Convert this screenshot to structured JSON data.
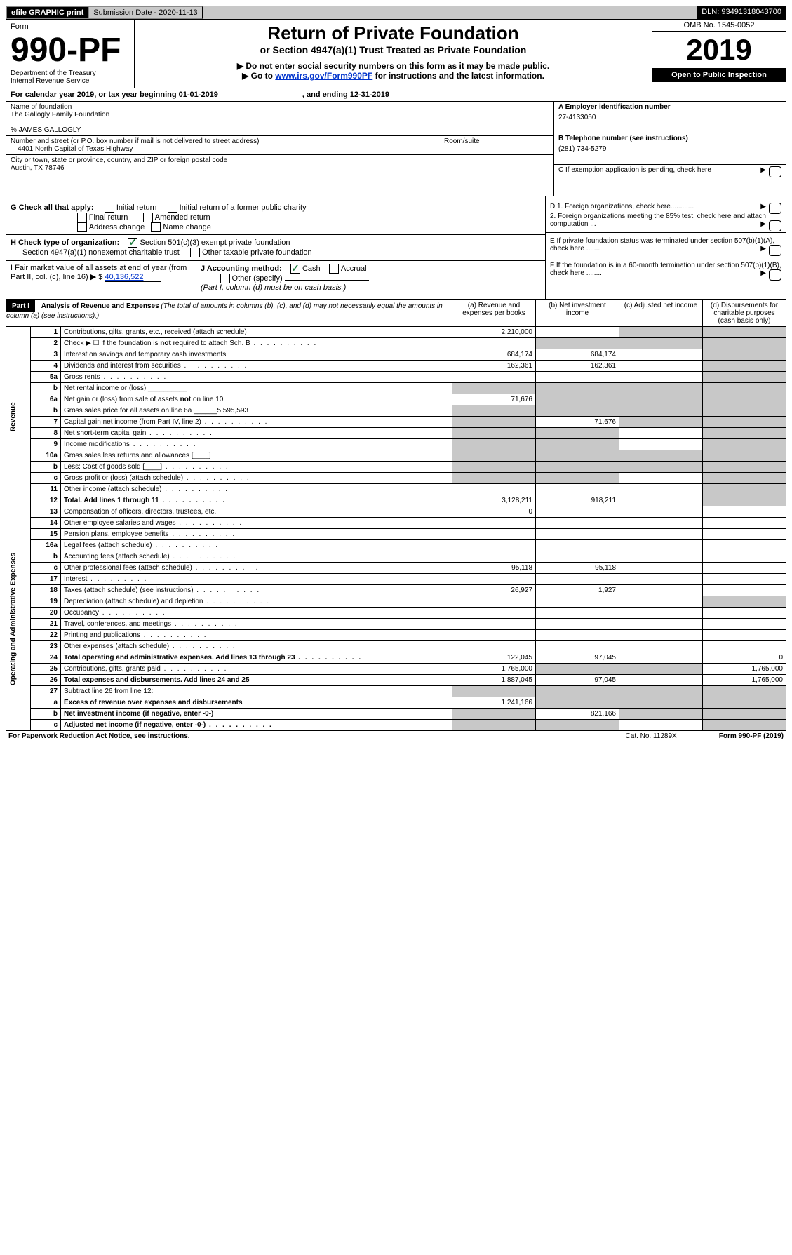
{
  "top": {
    "efile": "efile GRAPHIC print",
    "subdate_label": "Submission Date - 2020-11-13",
    "dln": "DLN: 93491318043700"
  },
  "header": {
    "form_word": "Form",
    "form_no": "990-PF",
    "dept": "Department of the Treasury",
    "irs": "Internal Revenue Service",
    "title": "Return of Private Foundation",
    "subtitle": "or Section 4947(a)(1) Trust Treated as Private Foundation",
    "note1": "▶ Do not enter social security numbers on this form as it may be made public.",
    "note2_pre": "▶ Go to ",
    "note2_link": "www.irs.gov/Form990PF",
    "note2_post": " for instructions and the latest information.",
    "omb": "OMB No. 1545-0052",
    "year": "2019",
    "openpublic": "Open to Public Inspection"
  },
  "calyear": {
    "left": "For calendar year 2019, or tax year beginning 01-01-2019",
    "right": ", and ending 12-31-2019"
  },
  "id": {
    "name_label": "Name of foundation",
    "name": "The Gallogly Family Foundation",
    "co": "% JAMES GALLOGLY",
    "addr_label": "Number and street (or P.O. box number if mail is not delivered to street address)",
    "addr": "4401 North Capital of Texas Highway",
    "room_label": "Room/suite",
    "city_label": "City or town, state or province, country, and ZIP or foreign postal code",
    "city": "Austin, TX  78746",
    "a_label": "A Employer identification number",
    "a_val": "27-4133050",
    "b_label": "B Telephone number (see instructions)",
    "b_val": "(281) 734-5279",
    "c_label": "C If exemption application is pending, check here"
  },
  "checks": {
    "g_label": "G Check all that apply:",
    "g_opts": [
      "Initial return",
      "Initial return of a former public charity",
      "Final return",
      "Amended return",
      "Address change",
      "Name change"
    ],
    "h_label": "H Check type of organization:",
    "h1": "Section 501(c)(3) exempt private foundation",
    "h2": "Section 4947(a)(1) nonexempt charitable trust",
    "h3": "Other taxable private foundation",
    "i_label": "I Fair market value of all assets at end of year (from Part II, col. (c), line 16) ▶ $",
    "i_val": "40,136,522",
    "j_label": "J Accounting method:",
    "j_cash": "Cash",
    "j_accrual": "Accrual",
    "j_other": "Other (specify)",
    "j_note": "(Part I, column (d) must be on cash basis.)",
    "d1": "D 1. Foreign organizations, check here............",
    "d2": "2. Foreign organizations meeting the 85% test, check here and attach computation ...",
    "e": "E  If private foundation status was terminated under section 507(b)(1)(A), check here .......",
    "f": "F  If the foundation is in a 60-month termination under section 507(b)(1)(B), check here ........"
  },
  "part1": {
    "label": "Part I",
    "title": "Analysis of Revenue and Expenses",
    "title_note": "(The total of amounts in columns (b), (c), and (d) may not necessarily equal the amounts in column (a) (see instructions).)",
    "col_a": "(a)   Revenue and expenses per books",
    "col_b": "(b)  Net investment income",
    "col_c": "(c)  Adjusted net income",
    "col_d": "(d)  Disbursements for charitable purposes (cash basis only)",
    "side_rev": "Revenue",
    "side_exp": "Operating and Administrative Expenses"
  },
  "rows": [
    {
      "n": "1",
      "d": "Contributions, gifts, grants, etc., received (attach schedule)",
      "a": "2,210,000",
      "b": "",
      "c": "g",
      "dd": "g"
    },
    {
      "n": "2",
      "d": "Check ▶ ☐ if the foundation is not required to attach Sch. B",
      "a": "",
      "b": "g",
      "c": "g",
      "dd": "g",
      "dots": 1
    },
    {
      "n": "3",
      "d": "Interest on savings and temporary cash investments",
      "a": "684,174",
      "b": "684,174",
      "c": "",
      "dd": "g"
    },
    {
      "n": "4",
      "d": "Dividends and interest from securities",
      "a": "162,361",
      "b": "162,361",
      "c": "",
      "dd": "g",
      "dots": 1
    },
    {
      "n": "5a",
      "d": "Gross rents",
      "a": "",
      "b": "",
      "c": "",
      "dd": "g",
      "dots": 1
    },
    {
      "n": "b",
      "d": "Net rental income or (loss) __________",
      "a": "g",
      "b": "g",
      "c": "g",
      "dd": "g"
    },
    {
      "n": "6a",
      "d": "Net gain or (loss) from sale of assets not on line 10",
      "a": "71,676",
      "b": "g",
      "c": "g",
      "dd": "g"
    },
    {
      "n": "b",
      "d": "Gross sales price for all assets on line 6a ______5,595,593",
      "a": "g",
      "b": "g",
      "c": "g",
      "dd": "g"
    },
    {
      "n": "7",
      "d": "Capital gain net income (from Part IV, line 2)",
      "a": "g",
      "b": "71,676",
      "c": "g",
      "dd": "g",
      "dots": 1
    },
    {
      "n": "8",
      "d": "Net short-term capital gain",
      "a": "g",
      "b": "g",
      "c": "",
      "dd": "g",
      "dots": 1
    },
    {
      "n": "9",
      "d": "Income modifications",
      "a": "g",
      "b": "g",
      "c": "",
      "dd": "g",
      "dots": 1
    },
    {
      "n": "10a",
      "d": "Gross sales less returns and allowances   [____]",
      "a": "g",
      "b": "g",
      "c": "g",
      "dd": "g"
    },
    {
      "n": "b",
      "d": "Less: Cost of goods sold       [____]",
      "a": "g",
      "b": "g",
      "c": "g",
      "dd": "g",
      "dots": 1
    },
    {
      "n": "c",
      "d": "Gross profit or (loss) (attach schedule)",
      "a": "g",
      "b": "g",
      "c": "",
      "dd": "g",
      "dots": 1
    },
    {
      "n": "11",
      "d": "Other income (attach schedule)",
      "a": "",
      "b": "",
      "c": "",
      "dd": "g",
      "dots": 1
    },
    {
      "n": "12",
      "d": "Total. Add lines 1 through 11",
      "a": "3,128,211",
      "b": "918,211",
      "c": "",
      "dd": "g",
      "bold": 1,
      "dots": 1
    }
  ],
  "rows2": [
    {
      "n": "13",
      "d": "Compensation of officers, directors, trustees, etc.",
      "a": "0",
      "b": "",
      "c": "",
      "dd": ""
    },
    {
      "n": "14",
      "d": "Other employee salaries and wages",
      "a": "",
      "b": "",
      "c": "",
      "dd": "",
      "dots": 1
    },
    {
      "n": "15",
      "d": "Pension plans, employee benefits",
      "a": "",
      "b": "",
      "c": "",
      "dd": "",
      "dots": 1
    },
    {
      "n": "16a",
      "d": "Legal fees (attach schedule)",
      "a": "",
      "b": "",
      "c": "",
      "dd": "",
      "dots": 1
    },
    {
      "n": "b",
      "d": "Accounting fees (attach schedule)",
      "a": "",
      "b": "",
      "c": "",
      "dd": "",
      "dots": 1
    },
    {
      "n": "c",
      "d": "Other professional fees (attach schedule)",
      "a": "95,118",
      "b": "95,118",
      "c": "",
      "dd": "",
      "dots": 1
    },
    {
      "n": "17",
      "d": "Interest",
      "a": "",
      "b": "",
      "c": "",
      "dd": "",
      "dots": 1
    },
    {
      "n": "18",
      "d": "Taxes (attach schedule) (see instructions)",
      "a": "26,927",
      "b": "1,927",
      "c": "",
      "dd": "",
      "dots": 1
    },
    {
      "n": "19",
      "d": "Depreciation (attach schedule) and depletion",
      "a": "",
      "b": "",
      "c": "",
      "dd": "g",
      "dots": 1
    },
    {
      "n": "20",
      "d": "Occupancy",
      "a": "",
      "b": "",
      "c": "",
      "dd": "",
      "dots": 1
    },
    {
      "n": "21",
      "d": "Travel, conferences, and meetings",
      "a": "",
      "b": "",
      "c": "",
      "dd": "",
      "dots": 1
    },
    {
      "n": "22",
      "d": "Printing and publications",
      "a": "",
      "b": "",
      "c": "",
      "dd": "",
      "dots": 1
    },
    {
      "n": "23",
      "d": "Other expenses (attach schedule)",
      "a": "",
      "b": "",
      "c": "",
      "dd": "",
      "dots": 1
    },
    {
      "n": "24",
      "d": "Total operating and administrative expenses. Add lines 13 through 23",
      "a": "122,045",
      "b": "97,045",
      "c": "",
      "dd": "0",
      "bold": 1,
      "dots": 1
    },
    {
      "n": "25",
      "d": "Contributions, gifts, grants paid",
      "a": "1,765,000",
      "b": "g",
      "c": "g",
      "dd": "1,765,000",
      "dots": 1
    },
    {
      "n": "26",
      "d": "Total expenses and disbursements. Add lines 24 and 25",
      "a": "1,887,045",
      "b": "97,045",
      "c": "",
      "dd": "1,765,000",
      "bold": 1
    },
    {
      "n": "27",
      "d": "Subtract line 26 from line 12:",
      "a": "g",
      "b": "g",
      "c": "g",
      "dd": "g"
    },
    {
      "n": "a",
      "d": "Excess of revenue over expenses and disbursements",
      "a": "1,241,166",
      "b": "g",
      "c": "g",
      "dd": "g",
      "bold": 1
    },
    {
      "n": "b",
      "d": "Net investment income (if negative, enter -0-)",
      "a": "g",
      "b": "821,166",
      "c": "g",
      "dd": "g",
      "bold": 1
    },
    {
      "n": "c",
      "d": "Adjusted net income (if negative, enter -0-)",
      "a": "g",
      "b": "g",
      "c": "",
      "dd": "g",
      "bold": 1,
      "dots": 1
    }
  ],
  "foot": {
    "left": "For Paperwork Reduction Act Notice, see instructions.",
    "mid": "Cat. No. 11289X",
    "right": "Form 990-PF (2019)"
  }
}
